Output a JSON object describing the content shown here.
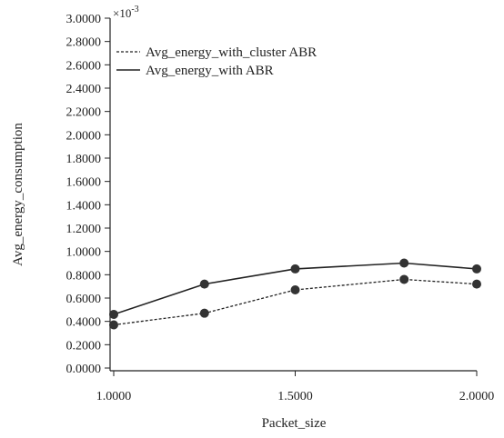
{
  "chart_data": {
    "type": "line",
    "xlabel": "Packet_size",
    "ylabel": "Avg_energy_consumption",
    "scale_base": "×10",
    "scale_exp": "-3",
    "xlim": [
      1.0,
      2.0
    ],
    "ylim": [
      0.0,
      3.0
    ],
    "xticks": [
      "1.0000",
      "1.5000",
      "2.0000"
    ],
    "yticks": [
      "0.0000",
      "0.2000",
      "0.4000",
      "0.6000",
      "0.8000",
      "1.0000",
      "1.2000",
      "1.4000",
      "1.6000",
      "1.8000",
      "2.0000",
      "2.2000",
      "2.4000",
      "2.6000",
      "2.8000",
      "3.0000"
    ],
    "legend_position": "top-left",
    "grid": false,
    "series": [
      {
        "name": "Avg_energy_with_cluster ABR",
        "style": "dashed",
        "color": "#222222",
        "x": [
          1.0,
          1.25,
          1.5,
          1.8,
          2.0
        ],
        "y": [
          0.37,
          0.47,
          0.67,
          0.76,
          0.72
        ]
      },
      {
        "name": "Avg_energy_with ABR",
        "style": "solid",
        "color": "#222222",
        "x": [
          1.0,
          1.25,
          1.5,
          1.8,
          2.0
        ],
        "y": [
          0.46,
          0.72,
          0.85,
          0.9,
          0.85
        ]
      }
    ]
  }
}
